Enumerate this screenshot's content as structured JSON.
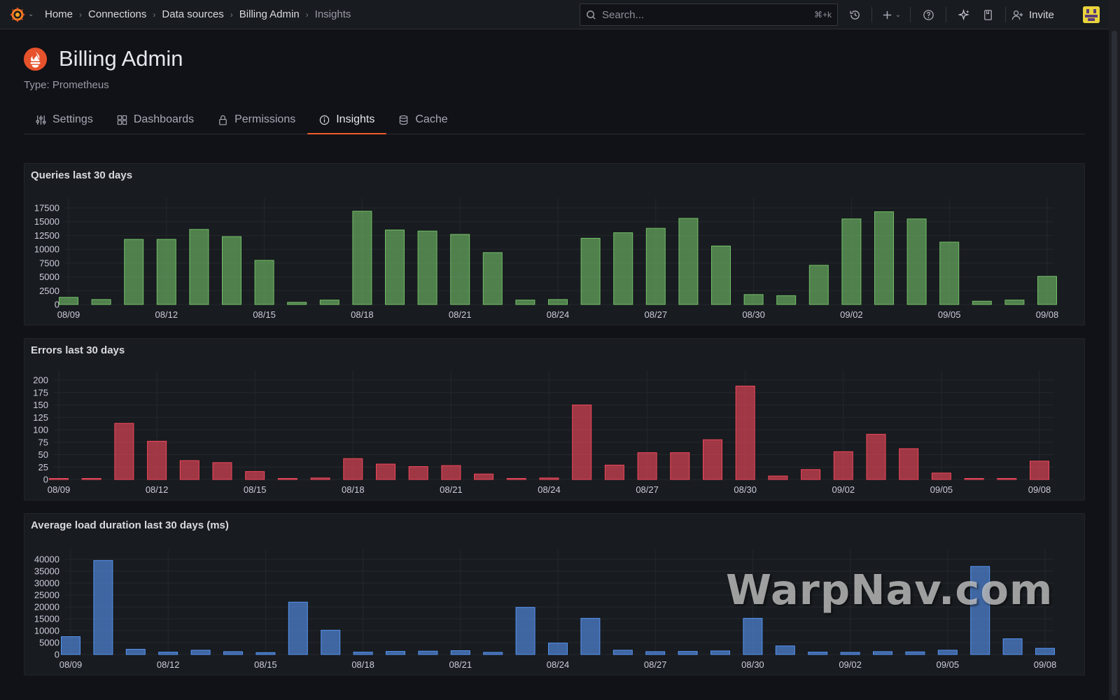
{
  "topbar": {
    "breadcrumbs": [
      "Home",
      "Connections",
      "Data sources",
      "Billing Admin",
      "Insights"
    ],
    "search_placeholder": "Search...",
    "search_shortcut": "⌘+k",
    "invite_label": "Invite",
    "icons": [
      "grafana-logo-icon",
      "history-icon",
      "plus-icon",
      "help-icon",
      "sparkle-icon",
      "bookmark-icon",
      "add-user-icon"
    ]
  },
  "header": {
    "title": "Billing Admin",
    "subtitle": "Type: Prometheus"
  },
  "tabs": [
    {
      "label": "Settings",
      "icon": "sliders-icon",
      "active": false
    },
    {
      "label": "Dashboards",
      "icon": "grid-icon",
      "active": false
    },
    {
      "label": "Permissions",
      "icon": "lock-icon",
      "active": false
    },
    {
      "label": "Insights",
      "icon": "info-icon",
      "active": true
    },
    {
      "label": "Cache",
      "icon": "database-icon",
      "active": false
    }
  ],
  "colors": {
    "accent": "#f15b2a",
    "queries": "#73bf69",
    "errors": "#f2495c",
    "load": "#5794f2"
  },
  "watermark": "WarpNav.com",
  "chart_data": [
    {
      "type": "bar",
      "title": "Queries last 30 days",
      "categories": [
        "08/09",
        "08/10",
        "08/11",
        "08/12",
        "08/13",
        "08/14",
        "08/15",
        "08/16",
        "08/17",
        "08/18",
        "08/19",
        "08/20",
        "08/21",
        "08/22",
        "08/23",
        "08/24",
        "08/25",
        "08/26",
        "08/27",
        "08/28",
        "08/29",
        "08/30",
        "08/31",
        "09/01",
        "09/02",
        "09/03",
        "09/04",
        "09/05",
        "09/06",
        "09/07",
        "09/08"
      ],
      "x_tick_labels": [
        "08/09",
        "08/12",
        "08/15",
        "08/18",
        "08/21",
        "08/24",
        "08/27",
        "08/30",
        "09/02",
        "09/05",
        "09/08"
      ],
      "y_ticks": [
        0,
        2500,
        5000,
        7500,
        10000,
        12500,
        15000,
        17500
      ],
      "values": [
        1300,
        900,
        11800,
        11800,
        13600,
        12300,
        8000,
        400,
        800,
        16900,
        13500,
        13300,
        12700,
        9400,
        800,
        900,
        12000,
        13000,
        13800,
        15600,
        10600,
        1800,
        1600,
        7100,
        15500,
        16800,
        15500,
        11300,
        600,
        800,
        5100
      ],
      "ylim": [
        0,
        17500
      ],
      "grid": true
    },
    {
      "type": "bar",
      "title": "Errors last 30 days",
      "categories": [
        "08/09",
        "08/10",
        "08/11",
        "08/12",
        "08/13",
        "08/14",
        "08/15",
        "08/16",
        "08/17",
        "08/18",
        "08/19",
        "08/20",
        "08/21",
        "08/22",
        "08/23",
        "08/24",
        "08/25",
        "08/26",
        "08/27",
        "08/28",
        "08/29",
        "08/30",
        "08/31",
        "09/01",
        "09/02",
        "09/03",
        "09/04",
        "09/05",
        "09/06",
        "09/07",
        "09/08"
      ],
      "x_tick_labels": [
        "08/09",
        "08/12",
        "08/15",
        "08/18",
        "08/21",
        "08/24",
        "08/27",
        "08/30",
        "09/02",
        "09/05",
        "09/08"
      ],
      "y_ticks": [
        0,
        25,
        50,
        75,
        100,
        125,
        150,
        175,
        200
      ],
      "values": [
        2,
        1,
        113,
        77,
        38,
        34,
        16,
        1,
        3,
        42,
        31,
        26,
        28,
        11,
        1,
        3,
        150,
        29,
        54,
        54,
        80,
        188,
        7,
        20,
        56,
        91,
        62,
        13,
        2,
        1,
        37
      ],
      "ylim": [
        0,
        200
      ],
      "grid": true
    },
    {
      "type": "bar",
      "title": "Average load duration last 30 days (ms)",
      "categories": [
        "08/09",
        "08/10",
        "08/11",
        "08/12",
        "08/13",
        "08/14",
        "08/15",
        "08/16",
        "08/17",
        "08/18",
        "08/19",
        "08/20",
        "08/21",
        "08/22",
        "08/23",
        "08/24",
        "08/25",
        "08/26",
        "08/27",
        "08/28",
        "08/29",
        "08/30",
        "08/31",
        "09/01",
        "09/02",
        "09/03",
        "09/04",
        "09/05",
        "09/06",
        "09/07",
        "09/08"
      ],
      "x_tick_labels": [
        "08/09",
        "08/12",
        "08/15",
        "08/18",
        "08/21",
        "08/24",
        "08/27",
        "08/30",
        "09/02",
        "09/05",
        "09/08"
      ],
      "y_ticks": [
        0,
        5000,
        10000,
        15000,
        20000,
        25000,
        30000,
        35000,
        40000
      ],
      "values": [
        7500,
        39500,
        2200,
        1000,
        1800,
        1200,
        800,
        22000,
        10200,
        1000,
        1300,
        1400,
        1600,
        900,
        19800,
        4800,
        15200,
        1800,
        1200,
        1300,
        1500,
        15200,
        3600,
        1000,
        900,
        1200,
        1100,
        1800,
        37000,
        6600,
        2600
      ],
      "ylim": [
        0,
        40000
      ],
      "grid": true
    }
  ]
}
